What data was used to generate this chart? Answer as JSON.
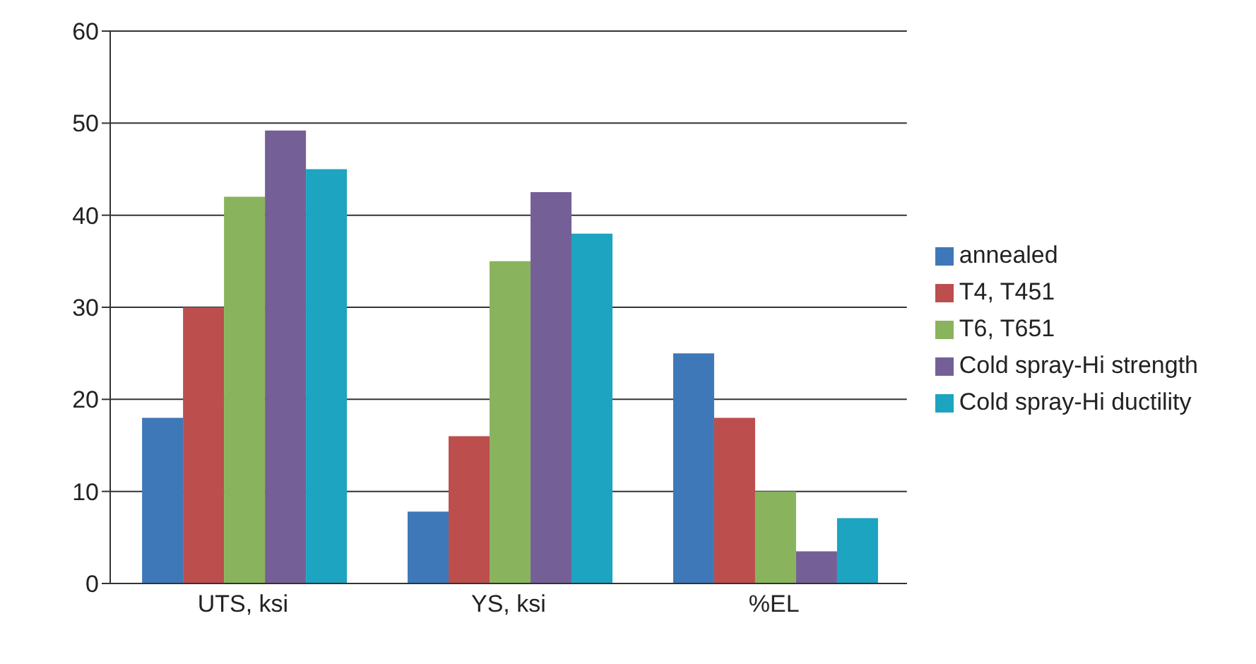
{
  "chart_data": {
    "type": "bar",
    "categories": [
      "UTS, ksi",
      "YS, ksi",
      "%EL"
    ],
    "series": [
      {
        "name": "annealed",
        "color": "#3f78b8",
        "values": [
          18,
          7.8,
          25
        ]
      },
      {
        "name": "T4, T451",
        "color": "#bc4e4e",
        "values": [
          30,
          16,
          18
        ]
      },
      {
        "name": "T6, T651",
        "color": "#8ab35e",
        "values": [
          42,
          35,
          10
        ]
      },
      {
        "name": "Cold spray-Hi strength",
        "color": "#746096",
        "values": [
          49.2,
          42.5,
          3.5
        ]
      },
      {
        "name": "Cold spray-Hi ductility",
        "color": "#1ca4c1",
        "values": [
          45,
          38,
          7.1
        ]
      }
    ],
    "ylim": [
      0,
      60
    ],
    "yticks": [
      0,
      10,
      20,
      30,
      40,
      50,
      60
    ],
    "grid": "y",
    "legend": "right"
  }
}
